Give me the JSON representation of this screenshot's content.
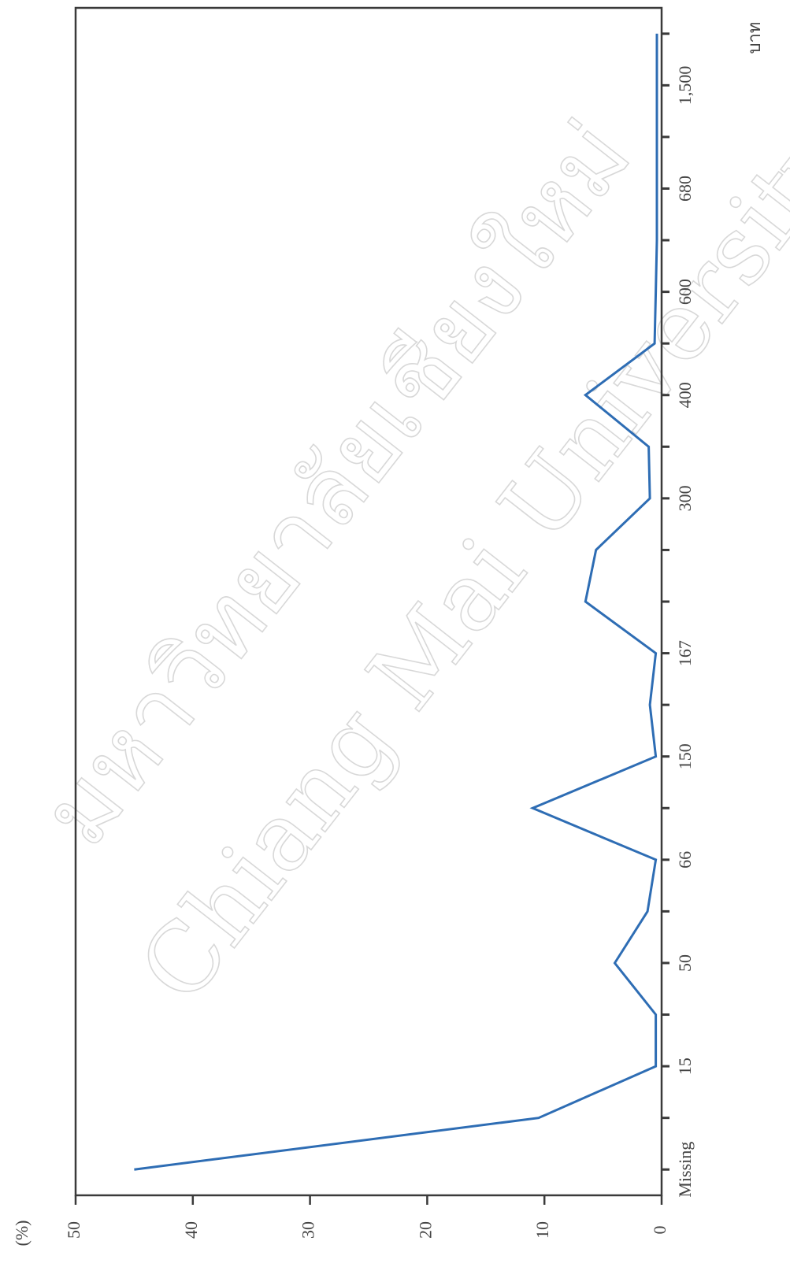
{
  "chart_data": {
    "type": "line",
    "orientation": "rotated-90",
    "title": "",
    "xlabel": "บาท",
    "ylabel": "(%)",
    "categories": [
      "Missing",
      "",
      "15",
      "",
      "50",
      "",
      "66",
      "",
      "150",
      "",
      "167",
      "",
      "",
      "300",
      "",
      "400",
      "",
      "600",
      "",
      "680",
      "",
      "1,500",
      ""
    ],
    "x_tick_labels": [
      "Missing",
      "15",
      "50",
      "66",
      "150",
      "167",
      "300",
      "400",
      "600",
      "680",
      "1,500"
    ],
    "series": [
      {
        "values": [
          45,
          10.5,
          0.5,
          0.5,
          4,
          1.2,
          0.5,
          11,
          0.5,
          1,
          0.5,
          6.5,
          5.6,
          1,
          1.1,
          6.5,
          0.6,
          0.5,
          0.4,
          0.4,
          0.4,
          0.4,
          0.4
        ],
        "color": "#2e6db4"
      }
    ],
    "y_ticks": [
      0,
      10,
      20,
      30,
      40,
      50
    ],
    "ylim": [
      0,
      50
    ],
    "grid": false,
    "legend": "none"
  },
  "watermark": {
    "line1": "มหาวิทยาลัยเชียงใหม่",
    "line2": "Chiang Mai University"
  }
}
